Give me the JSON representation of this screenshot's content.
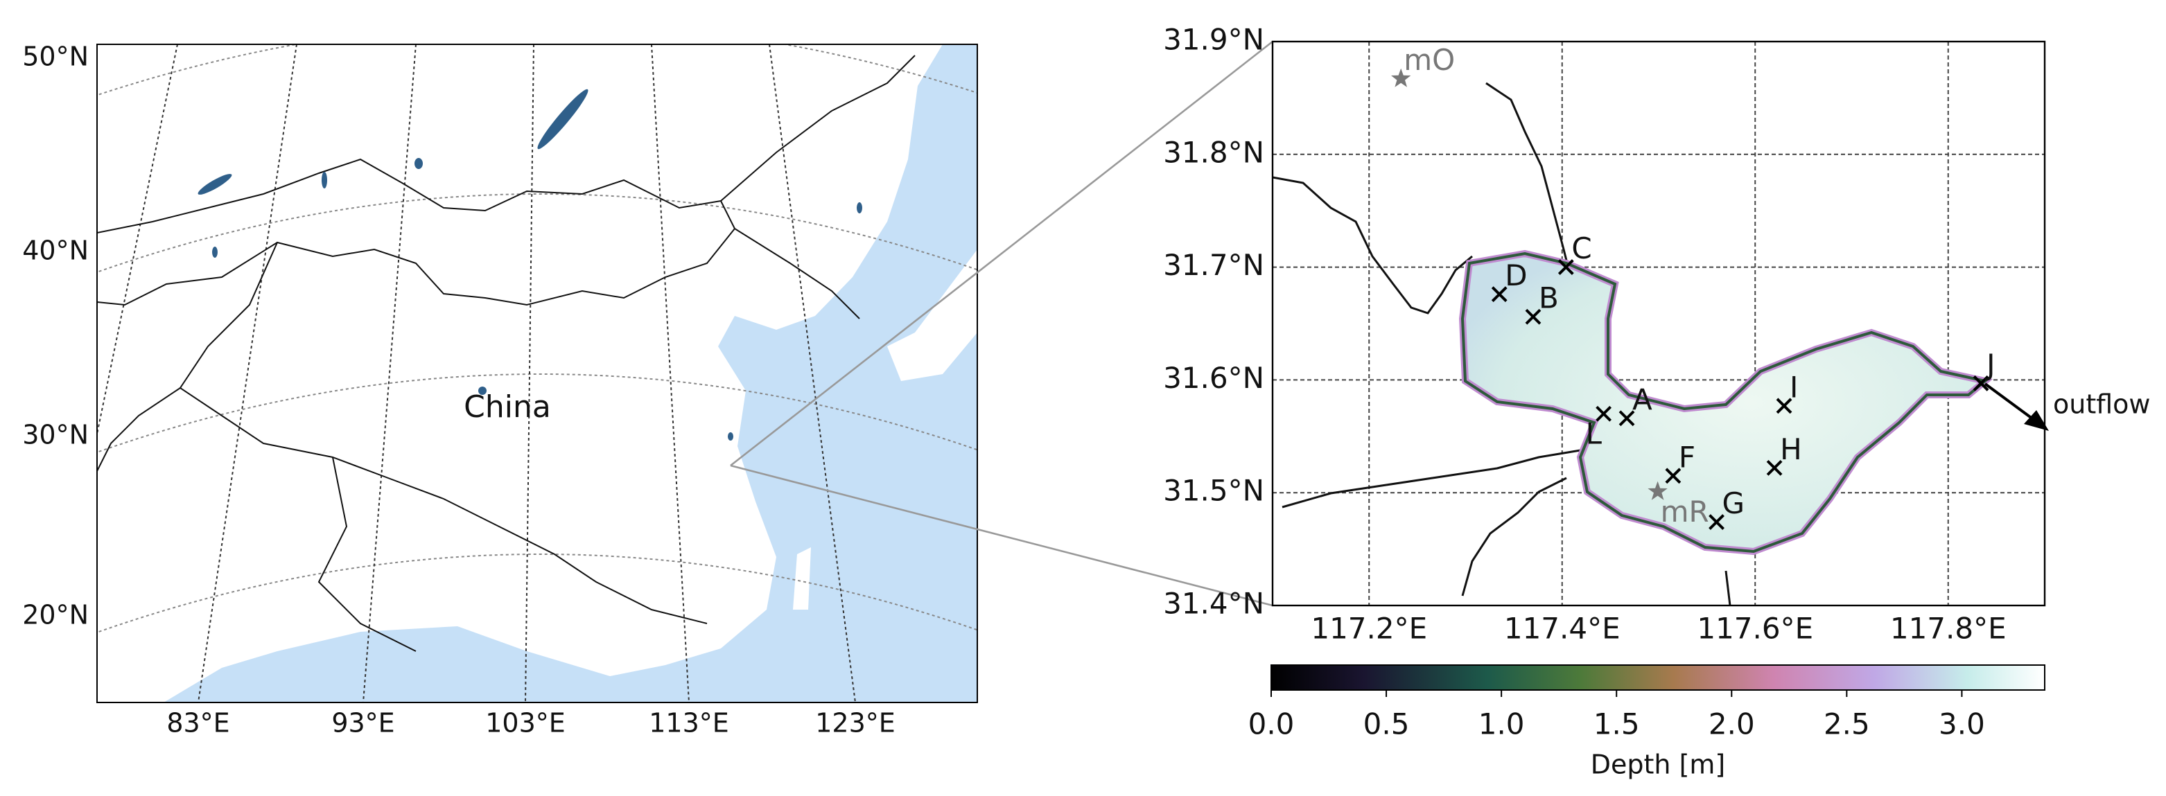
{
  "left_map": {
    "lat_labels": [
      "50°N",
      "40°N",
      "30°N",
      "20°N"
    ],
    "lon_labels": [
      "83°E",
      "93°E",
      "103°E",
      "113°E",
      "123°E"
    ],
    "country_label": "China"
  },
  "right_map": {
    "xlim": [
      117.1,
      117.9
    ],
    "ylim": [
      31.4,
      31.9
    ],
    "xticks": [
      {
        "value": 117.2,
        "label": "117.2°E"
      },
      {
        "value": 117.4,
        "label": "117.4°E"
      },
      {
        "value": 117.6,
        "label": "117.6°E"
      },
      {
        "value": 117.8,
        "label": "117.8°E"
      }
    ],
    "yticks": [
      {
        "value": 31.4,
        "label": "31.4°N"
      },
      {
        "value": 31.5,
        "label": "31.5°N"
      },
      {
        "value": 31.6,
        "label": "31.6°N"
      },
      {
        "value": 31.7,
        "label": "31.7°N"
      },
      {
        "value": 31.8,
        "label": "31.8°N"
      },
      {
        "value": 31.9,
        "label": "31.9°N"
      }
    ],
    "sites": [
      {
        "label": "mO",
        "lon": 117.233,
        "lat": 31.867,
        "marker": "star"
      },
      {
        "label": "C",
        "lon": 117.404,
        "lat": 31.7,
        "marker": "x"
      },
      {
        "label": "D",
        "lon": 117.335,
        "lat": 31.676,
        "marker": "x"
      },
      {
        "label": "B",
        "lon": 117.37,
        "lat": 31.656,
        "marker": "x"
      },
      {
        "label": "A",
        "lon": 117.467,
        "lat": 31.566,
        "marker": "x"
      },
      {
        "label": "L",
        "lon": 117.443,
        "lat": 31.57,
        "marker": "x"
      },
      {
        "label": "F",
        "lon": 117.515,
        "lat": 31.515,
        "marker": "x"
      },
      {
        "label": "mR",
        "lon": 117.499,
        "lat": 31.501,
        "marker": "star"
      },
      {
        "label": "G",
        "lon": 117.56,
        "lat": 31.474,
        "marker": "x"
      },
      {
        "label": "H",
        "lon": 117.62,
        "lat": 31.522,
        "marker": "x"
      },
      {
        "label": "I",
        "lon": 117.63,
        "lat": 31.577,
        "marker": "x"
      },
      {
        "label": "J",
        "lon": 117.834,
        "lat": 31.597,
        "marker": "x"
      }
    ],
    "outflow_label": "outflow"
  },
  "colorbar": {
    "lim": [
      0,
      3.36
    ],
    "ticks": [
      {
        "value": 0,
        "label": "0.0"
      },
      0.5,
      {
        "value": 1,
        "label": "1.0"
      },
      1.5,
      {
        "value": 2,
        "label": "2.0"
      },
      2.5,
      {
        "value": 3,
        "label": "3.0"
      }
    ],
    "label": "Depth [m]"
  }
}
